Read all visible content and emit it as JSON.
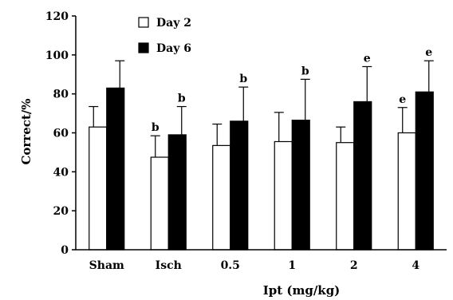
{
  "chart_data": {
    "type": "bar",
    "title": "",
    "xlabel": "Ipt (mg/kg)",
    "ylabel": "Correct/%",
    "ylim": [
      0,
      120
    ],
    "yticks": [
      0,
      20,
      40,
      60,
      80,
      100,
      120
    ],
    "grid": false,
    "legend_position": "top-left",
    "categories": [
      "Sham",
      "Isch",
      "0.5",
      "1",
      "2",
      "4"
    ],
    "series": [
      {
        "name": "Day 2",
        "fill": "#ffffff",
        "values": [
          63,
          47.5,
          53.5,
          55.5,
          55,
          60
        ],
        "errors": [
          10.5,
          11,
          11,
          15,
          8,
          13
        ],
        "labels": [
          "",
          "b",
          "",
          "",
          "",
          "e"
        ]
      },
      {
        "name": "Day 6",
        "fill": "#000000",
        "values": [
          83,
          59,
          66,
          66.5,
          76,
          81
        ],
        "errors": [
          14,
          14.5,
          17.5,
          21,
          18,
          16
        ],
        "labels": [
          "",
          "b",
          "b",
          "b",
          "e",
          "e"
        ]
      }
    ]
  }
}
